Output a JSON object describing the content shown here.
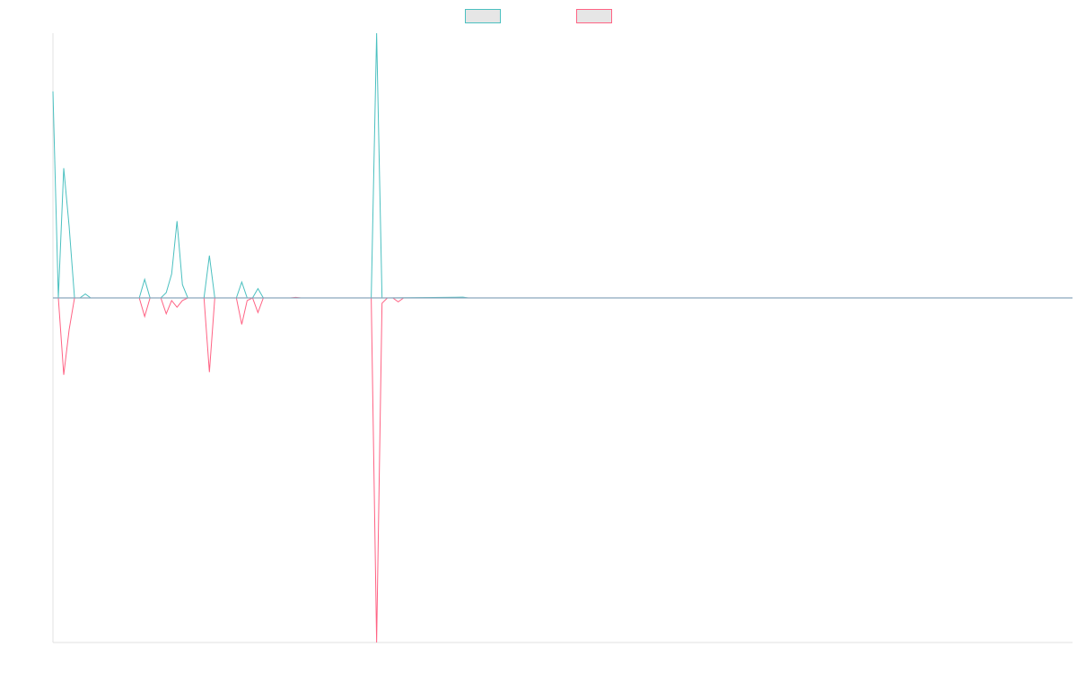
{
  "chart_data": {
    "type": "line",
    "title": "",
    "xlabel": "",
    "ylabel": "",
    "grid": false,
    "legend_position": "top-center",
    "x_count": 190,
    "ylim": [
      -1.3,
      1.0
    ],
    "series": [
      {
        "color": "#4bc0c0",
        "legend_fill": "#e6e6e6",
        "points": [
          [
            0,
            0.78
          ],
          [
            1,
            0
          ],
          [
            2,
            0.49
          ],
          [
            3,
            0.27
          ],
          [
            4,
            0
          ],
          [
            5,
            0
          ],
          [
            6,
            0.015
          ],
          [
            7,
            0
          ],
          [
            16,
            0
          ],
          [
            17,
            0.07
          ],
          [
            18,
            0
          ],
          [
            19,
            0
          ],
          [
            20,
            0
          ],
          [
            21,
            0.02
          ],
          [
            22,
            0.09
          ],
          [
            23,
            0.29
          ],
          [
            24,
            0.05
          ],
          [
            25,
            0
          ],
          [
            26,
            0
          ],
          [
            27,
            0
          ],
          [
            28,
            0
          ],
          [
            29,
            0.16
          ],
          [
            30,
            0
          ],
          [
            31,
            0
          ],
          [
            34,
            0
          ],
          [
            35,
            0.06
          ],
          [
            36,
            0
          ],
          [
            37,
            0
          ],
          [
            38,
            0.035
          ],
          [
            39,
            0
          ],
          [
            40,
            0
          ],
          [
            58,
            0
          ],
          [
            59,
            0
          ],
          [
            60,
            1.0
          ],
          [
            61,
            0
          ],
          [
            62,
            0
          ],
          [
            76,
            0.003
          ],
          [
            77,
            0
          ],
          [
            189,
            0
          ]
        ]
      },
      {
        "color": "#ff6384",
        "legend_fill": "#e6e6e6",
        "points": [
          [
            0,
            0
          ],
          [
            1,
            0
          ],
          [
            2,
            -0.29
          ],
          [
            3,
            -0.12
          ],
          [
            4,
            0
          ],
          [
            5,
            0
          ],
          [
            16,
            0
          ],
          [
            17,
            -0.07
          ],
          [
            18,
            0
          ],
          [
            19,
            0
          ],
          [
            20,
            0
          ],
          [
            21,
            -0.06
          ],
          [
            22,
            -0.01
          ],
          [
            23,
            -0.035
          ],
          [
            24,
            -0.01
          ],
          [
            25,
            0
          ],
          [
            28,
            0
          ],
          [
            29,
            -0.28
          ],
          [
            30,
            0
          ],
          [
            31,
            0
          ],
          [
            34,
            0
          ],
          [
            35,
            -0.1
          ],
          [
            36,
            -0.01
          ],
          [
            37,
            0
          ],
          [
            38,
            -0.055
          ],
          [
            39,
            0
          ],
          [
            40,
            0
          ],
          [
            44,
            0
          ],
          [
            45,
            0.002
          ],
          [
            46,
            0
          ],
          [
            58,
            0
          ],
          [
            59,
            0
          ],
          [
            60,
            -1.3
          ],
          [
            61,
            -0.02
          ],
          [
            62,
            0
          ],
          [
            63,
            0
          ],
          [
            64,
            -0.015
          ],
          [
            65,
            0
          ],
          [
            66,
            0
          ],
          [
            189,
            0
          ]
        ]
      }
    ]
  }
}
